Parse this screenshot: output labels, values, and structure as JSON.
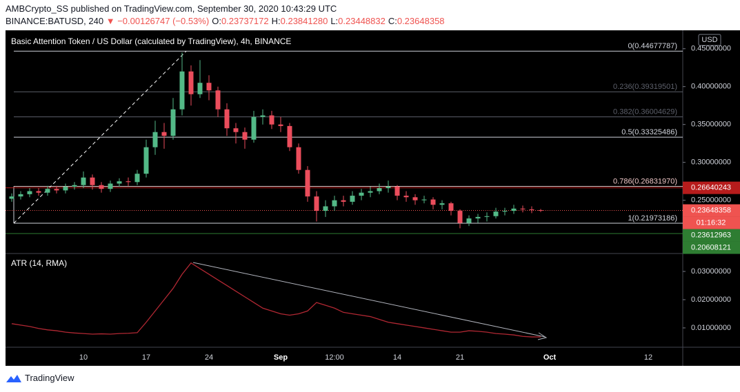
{
  "header": {
    "publisher": "AMBCrypto_SS published on TradingView.com, September 30, 2020 10:43:29 UTC",
    "symbol": "BINANCE:BATUSD, 240",
    "change": "▼ −0.00126747 (−0.53%)",
    "ohlc": [
      {
        "k": "O:",
        "v": "0.23737172"
      },
      {
        "k": "H:",
        "v": "0.23841280"
      },
      {
        "k": "L:",
        "v": "0.23448832"
      },
      {
        "k": "C:",
        "v": "0.23648358"
      }
    ]
  },
  "footer": {
    "brand": "TradingView"
  },
  "chart_data": {
    "type": "candlestick",
    "title": "Basic Attention Token / US Dollar (calculated by TradingView), 4h, BINANCE",
    "currency": "USD",
    "categories": [
      null,
      null,
      null,
      null,
      null,
      null,
      null,
      null,
      "10",
      null,
      null,
      null,
      null,
      null,
      null,
      "17",
      null,
      null,
      null,
      null,
      null,
      null,
      "24",
      null,
      null,
      null,
      null,
      null,
      null,
      null,
      "Sep",
      null,
      null,
      null,
      null,
      null,
      "12:00",
      null,
      null,
      null,
      null,
      null,
      null,
      "14",
      null,
      null,
      null,
      null,
      null,
      null,
      "21",
      null,
      null,
      null,
      null,
      null,
      null,
      null,
      null,
      null,
      "Oct",
      null,
      null,
      null,
      null,
      null,
      null,
      null,
      null,
      null,
      null,
      "12",
      null,
      null,
      null
    ],
    "up_color": "#53b987",
    "down_color": "#eb4d5c",
    "values": [
      [
        0.252,
        0.259,
        0.248,
        0.255
      ],
      [
        0.255,
        0.262,
        0.251,
        0.258
      ],
      [
        0.258,
        0.266,
        0.254,
        0.262
      ],
      [
        0.262,
        0.266,
        0.256,
        0.26
      ],
      [
        0.26,
        0.269,
        0.256,
        0.265
      ],
      [
        0.265,
        0.269,
        0.259,
        0.263
      ],
      [
        0.263,
        0.272,
        0.259,
        0.268
      ],
      [
        0.268,
        0.274,
        0.264,
        0.27
      ],
      [
        0.27,
        0.288,
        0.266,
        0.28
      ],
      [
        0.28,
        0.284,
        0.264,
        0.27
      ],
      [
        0.27,
        0.274,
        0.26,
        0.265
      ],
      [
        0.265,
        0.276,
        0.261,
        0.272
      ],
      [
        0.272,
        0.279,
        0.268,
        0.275
      ],
      [
        0.275,
        0.28,
        0.269,
        0.274
      ],
      [
        0.274,
        0.29,
        0.27,
        0.285
      ],
      [
        0.285,
        0.33,
        0.28,
        0.32
      ],
      [
        0.32,
        0.355,
        0.31,
        0.34
      ],
      [
        0.34,
        0.352,
        0.318,
        0.335
      ],
      [
        0.335,
        0.385,
        0.33,
        0.37
      ],
      [
        0.37,
        0.445,
        0.362,
        0.42
      ],
      [
        0.42,
        0.428,
        0.375,
        0.39
      ],
      [
        0.39,
        0.435,
        0.385,
        0.405
      ],
      [
        0.405,
        0.415,
        0.382,
        0.395
      ],
      [
        0.395,
        0.4,
        0.36,
        0.37
      ],
      [
        0.37,
        0.378,
        0.335,
        0.345
      ],
      [
        0.345,
        0.352,
        0.325,
        0.34
      ],
      [
        0.34,
        0.346,
        0.318,
        0.33
      ],
      [
        0.33,
        0.368,
        0.326,
        0.36
      ],
      [
        0.36,
        0.37,
        0.35,
        0.362
      ],
      [
        0.362,
        0.368,
        0.344,
        0.35
      ],
      [
        0.35,
        0.36,
        0.34,
        0.348
      ],
      [
        0.348,
        0.352,
        0.315,
        0.32
      ],
      [
        0.32,
        0.325,
        0.285,
        0.29
      ],
      [
        0.29,
        0.295,
        0.248,
        0.255
      ],
      [
        0.255,
        0.262,
        0.222,
        0.236
      ],
      [
        0.236,
        0.25,
        0.228,
        0.242
      ],
      [
        0.242,
        0.256,
        0.236,
        0.25
      ],
      [
        0.25,
        0.256,
        0.242,
        0.248
      ],
      [
        0.248,
        0.262,
        0.244,
        0.256
      ],
      [
        0.256,
        0.265,
        0.25,
        0.26
      ],
      [
        0.26,
        0.268,
        0.254,
        0.262
      ],
      [
        0.262,
        0.272,
        0.258,
        0.266
      ],
      [
        0.266,
        0.276,
        0.26,
        0.268
      ],
      [
        0.268,
        0.27,
        0.25,
        0.256
      ],
      [
        0.256,
        0.262,
        0.248,
        0.254
      ],
      [
        0.254,
        0.258,
        0.244,
        0.25
      ],
      [
        0.25,
        0.256,
        0.246,
        0.251
      ],
      [
        0.251,
        0.254,
        0.238,
        0.244
      ],
      [
        0.244,
        0.25,
        0.238,
        0.246
      ],
      [
        0.246,
        0.248,
        0.23,
        0.236
      ],
      [
        0.236,
        0.238,
        0.213,
        0.22
      ],
      [
        0.22,
        0.23,
        0.216,
        0.226
      ],
      [
        0.226,
        0.232,
        0.22,
        0.228
      ],
      [
        0.228,
        0.234,
        0.222,
        0.229
      ],
      [
        0.229,
        0.24,
        0.226,
        0.235
      ],
      [
        0.235,
        0.24,
        0.23,
        0.236
      ],
      [
        0.236,
        0.244,
        0.232,
        0.239
      ],
      [
        0.239,
        0.243,
        0.234,
        0.238
      ],
      [
        0.238,
        0.242,
        0.233,
        0.237
      ],
      [
        0.237,
        0.2384,
        0.2345,
        0.23648358
      ],
      null,
      null,
      null,
      null,
      null,
      null,
      null,
      null,
      null,
      null,
      null,
      null,
      null,
      null,
      null
    ],
    "ylim": [
      0.1806,
      0.4743
    ],
    "yticks": [
      {
        "value": 0.25,
        "label": "0.25000000"
      },
      {
        "value": 0.3,
        "label": "0.30000000"
      },
      {
        "value": 0.35,
        "label": "0.35000000"
      },
      {
        "value": 0.4,
        "label": "0.40000000"
      },
      {
        "value": 0.45,
        "label": "0.45000000"
      }
    ],
    "fib_levels": [
      {
        "label": "0(0.44677787)",
        "value": 0.44677787,
        "color": "#d1d4dc"
      },
      {
        "label": "0.236(0.39319501)",
        "value": 0.39319501,
        "color": "#5d606b"
      },
      {
        "label": "0.382(0.36004629)",
        "value": 0.36004629,
        "color": "#5d606b"
      },
      {
        "label": "0.5(0.33325486)",
        "value": 0.33325486,
        "color": "#d1d4dc"
      },
      {
        "label": "0.786(0.26831970)",
        "value": 0.2683197,
        "color": "#f0c8c8"
      },
      {
        "label": "1(0.21973186)",
        "value": 0.21973186,
        "color": "#d1d4dc"
      }
    ],
    "price_labels": [
      {
        "value": 0.26640243,
        "color": "#b71c1c",
        "line": "solid"
      },
      {
        "value": 0.23648358,
        "color": "#ef5350",
        "line": "dotted"
      },
      {
        "value": 0.23612963,
        "color": "#2e7d32",
        "line": "none"
      },
      {
        "value": 0.20608121,
        "color": "#2e7d32",
        "line": "solid"
      }
    ],
    "countdown": "01:16:32",
    "atr": {
      "type": "line",
      "title": "ATR (14, RMA)",
      "color": "#b22833",
      "values": [
        0.0115,
        0.011,
        0.0105,
        0.0098,
        0.0093,
        0.009,
        0.0085,
        0.0082,
        0.008,
        0.0078,
        0.0079,
        0.0078,
        0.008,
        0.0081,
        0.0083,
        0.012,
        0.016,
        0.02,
        0.024,
        0.029,
        0.033,
        0.031,
        0.029,
        0.027,
        0.025,
        0.023,
        0.021,
        0.019,
        0.017,
        0.016,
        0.015,
        0.0145,
        0.015,
        0.016,
        0.019,
        0.018,
        0.017,
        0.0155,
        0.015,
        0.0145,
        0.014,
        0.013,
        0.012,
        0.0115,
        0.011,
        0.0105,
        0.01,
        0.0095,
        0.009,
        0.0085,
        0.0085,
        0.009,
        0.0088,
        0.0085,
        0.008,
        0.0078,
        0.0075,
        0.007,
        0.0068,
        0.0068,
        null,
        null,
        null,
        null,
        null,
        null,
        null,
        null,
        null,
        null,
        null,
        null,
        null,
        null,
        null
      ],
      "ylim": [
        0.0034,
        0.0361
      ],
      "yticks": [
        {
          "value": 0.01,
          "label": "0.01000000"
        },
        {
          "value": 0.02,
          "label": "0.02000000"
        },
        {
          "value": 0.03,
          "label": "0.03000000"
        }
      ]
    }
  }
}
